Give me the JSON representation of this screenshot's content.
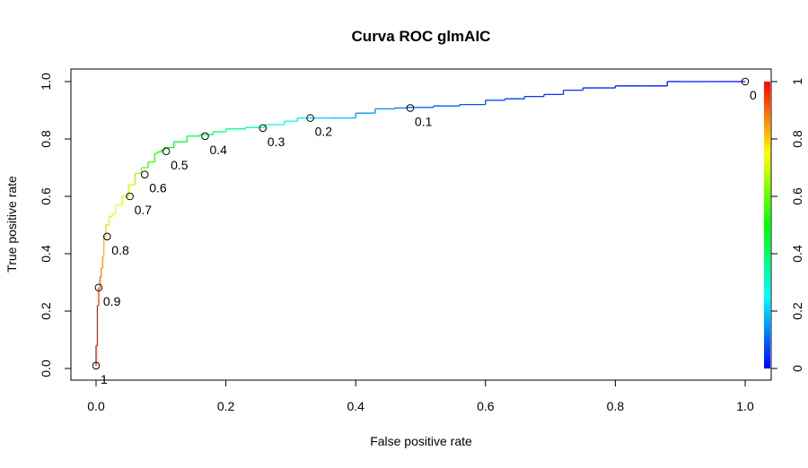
{
  "chart_data": {
    "type": "line",
    "title": "Curva ROC glmAIC",
    "xlabel": "False positive rate",
    "ylabel": "True positive rate",
    "xlim": [
      0,
      1
    ],
    "ylim": [
      0,
      1
    ],
    "x_ticks": [
      "0.0",
      "0.2",
      "0.4",
      "0.6",
      "0.8",
      "1.0"
    ],
    "y_ticks": [
      "0.0",
      "0.2",
      "0.4",
      "0.6",
      "0.8",
      "1.0"
    ],
    "x_tick_values": [
      0,
      0.2,
      0.4,
      0.6,
      0.8,
      1.0
    ],
    "y_tick_values": [
      0,
      0.2,
      0.4,
      0.6,
      0.8,
      1.0
    ],
    "grid": false,
    "colorkey": {
      "placement": "right",
      "range": [
        0,
        1
      ],
      "ticks": [
        "0",
        "0.2",
        "0.4",
        "0.6",
        "0.8",
        "1"
      ],
      "tick_values": [
        0,
        0.2,
        0.4,
        0.6,
        0.8,
        1
      ],
      "colors": [
        "#0000ff",
        "#00ffff",
        "#00ff00",
        "#ffff00",
        "#ff0000"
      ]
    },
    "curve": {
      "x": [
        0,
        0.002,
        0.004,
        0.006,
        0.008,
        0.01,
        0.012,
        0.015,
        0.02,
        0.025,
        0.03,
        0.04,
        0.05,
        0.06,
        0.07,
        0.08,
        0.09,
        0.095,
        0.1,
        0.105,
        0.12,
        0.14,
        0.16,
        0.18,
        0.2,
        0.23,
        0.26,
        0.29,
        0.31,
        0.33,
        0.36,
        0.4,
        0.43,
        0.46,
        0.48,
        0.52,
        0.56,
        0.6,
        0.63,
        0.66,
        0.69,
        0.72,
        0.75,
        0.8,
        0.85,
        0.88,
        0.9,
        0.95,
        1.0
      ],
      "y": [
        0.01,
        0.08,
        0.22,
        0.28,
        0.32,
        0.35,
        0.39,
        0.46,
        0.5,
        0.53,
        0.54,
        0.57,
        0.6,
        0.64,
        0.68,
        0.7,
        0.72,
        0.75,
        0.755,
        0.76,
        0.77,
        0.79,
        0.81,
        0.815,
        0.825,
        0.835,
        0.84,
        0.85,
        0.862,
        0.873,
        0.873,
        0.873,
        0.89,
        0.905,
        0.908,
        0.91,
        0.915,
        0.92,
        0.935,
        0.94,
        0.948,
        0.955,
        0.97,
        0.978,
        0.985,
        0.985,
        1.0,
        1.0,
        1.0
      ],
      "cutoff": [
        1.0,
        0.98,
        0.93,
        0.9,
        0.87,
        0.85,
        0.82,
        0.8,
        0.77,
        0.75,
        0.74,
        0.72,
        0.7,
        0.66,
        0.6,
        0.58,
        0.55,
        0.52,
        0.5,
        0.48,
        0.46,
        0.43,
        0.4,
        0.38,
        0.36,
        0.33,
        0.3,
        0.26,
        0.23,
        0.2,
        0.18,
        0.15,
        0.13,
        0.11,
        0.1,
        0.09,
        0.08,
        0.07,
        0.06,
        0.055,
        0.05,
        0.045,
        0.04,
        0.03,
        0.02,
        0.015,
        0.01,
        0.005,
        0.0
      ]
    },
    "threshold_points": [
      {
        "label": "1",
        "x": 0.0,
        "y": 0.01
      },
      {
        "label": "0.9",
        "x": 0.004,
        "y": 0.282
      },
      {
        "label": "0.8",
        "x": 0.017,
        "y": 0.46
      },
      {
        "label": "0.7",
        "x": 0.052,
        "y": 0.6
      },
      {
        "label": "0.6",
        "x": 0.075,
        "y": 0.676
      },
      {
        "label": "0.5",
        "x": 0.108,
        "y": 0.757
      },
      {
        "label": "0.4",
        "x": 0.168,
        "y": 0.81
      },
      {
        "label": "0.3",
        "x": 0.257,
        "y": 0.838
      },
      {
        "label": "0.2",
        "x": 0.33,
        "y": 0.873
      },
      {
        "label": "0.1",
        "x": 0.484,
        "y": 0.908
      },
      {
        "label": "0",
        "x": 1.0,
        "y": 1.0
      }
    ]
  }
}
